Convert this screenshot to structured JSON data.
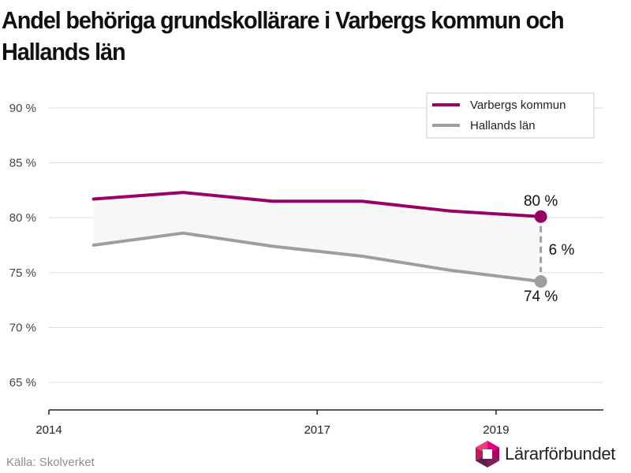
{
  "title": "Andel behöriga grundskollärare i Varbergs kommun och Hallands län",
  "source": "Källa: Skolverket",
  "brand": {
    "name": "Lärarförbundet",
    "logo": "lararforbundet-logo-icon"
  },
  "colors": {
    "varberg": "#990066",
    "halland": "#9e9e9e",
    "gap_fill": "#f7f7f7",
    "grid": "#dddddd",
    "axis": "#222222",
    "text": "#111111"
  },
  "chart_data": {
    "type": "line",
    "x": [
      2014.5,
      2015.5,
      2016.5,
      2017.5,
      2018.5,
      2019.5
    ],
    "series": [
      {
        "name": "Varbergs kommun",
        "values": [
          81.7,
          82.3,
          81.5,
          81.5,
          80.6,
          80.1
        ]
      },
      {
        "name": "Hallands län",
        "values": [
          77.5,
          78.6,
          77.4,
          76.5,
          75.2,
          74.2
        ]
      }
    ],
    "ylim": [
      62.5,
      92.5
    ],
    "xlim": [
      2014,
      2020.2
    ],
    "yticks": [
      65,
      70,
      75,
      80,
      85,
      90
    ],
    "ytick_labels": [
      "65 %",
      "70 %",
      "75 %",
      "80 %",
      "85 %",
      "90 %"
    ],
    "xticks": [
      2014,
      2017,
      2019
    ],
    "xtick_labels": [
      "2014",
      "2017",
      "2019"
    ],
    "grid": true,
    "legend_position": "top-right",
    "annotations": {
      "varberg_end": "80 %",
      "halland_end": "74 %",
      "difference": "6 %"
    }
  }
}
